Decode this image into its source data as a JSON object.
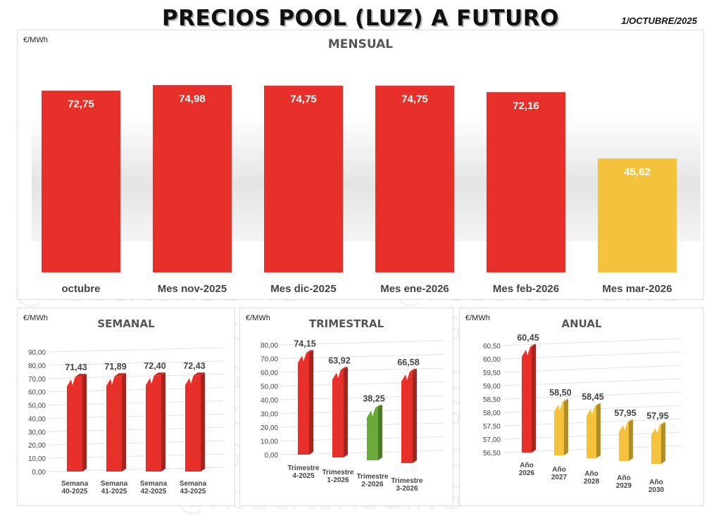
{
  "header": {
    "title": "PRECIOS POOL (LUZ) A FUTURO",
    "date": "1/OCTUBRE/2025",
    "watermark": "@RobertoRCGING"
  },
  "colors": {
    "red": "#e8302a",
    "yellow": "#f4c23c",
    "green": "#6aaa3a"
  },
  "chart_data": [
    {
      "type": "bar",
      "title": "MENSUAL",
      "ylabel": "€/MWh",
      "categories": [
        "octubre",
        "Mes nov-2025",
        "Mes dic-2025",
        "Mes ene-2026",
        "Mes feb-2026",
        "Mes mar-2026"
      ],
      "values": [
        72.75,
        74.98,
        74.75,
        74.75,
        72.16,
        45.62
      ],
      "labels": [
        "72,75",
        "74,98",
        "74,75",
        "74,75",
        "72,16",
        "45,62"
      ],
      "colors": [
        "red",
        "red",
        "red",
        "red",
        "red",
        "yellow"
      ],
      "ylim": [
        0,
        80
      ]
    },
    {
      "type": "bar",
      "title": "SEMANAL",
      "ylabel": "€/MWh",
      "categories": [
        [
          "Semana",
          "40-2025"
        ],
        [
          "Semana",
          "41-2025"
        ],
        [
          "Semana",
          "42-2025"
        ],
        [
          "Semana",
          "43-2025"
        ]
      ],
      "values": [
        71.43,
        71.89,
        72.4,
        72.43
      ],
      "labels": [
        "71,43",
        "71,89",
        "72,40",
        "72,43"
      ],
      "colors": [
        "red",
        "red",
        "red",
        "red"
      ],
      "yticks": [
        "0,00",
        "10,00",
        "20,00",
        "30,00",
        "40,00",
        "50,00",
        "60,00",
        "70,00",
        "80,00",
        "90,00"
      ],
      "ylim": [
        0,
        90
      ],
      "grid": true
    },
    {
      "type": "bar",
      "title": "TRIMESTRAL",
      "ylabel": "€/MWh",
      "categories": [
        [
          "Trimestre",
          "4-2025"
        ],
        [
          "Trimestre",
          "1-2026"
        ],
        [
          "Trimestre",
          "2-2026"
        ],
        [
          "Trimestre",
          "3-2026"
        ]
      ],
      "values": [
        74.15,
        63.92,
        38.25,
        66.58
      ],
      "labels": [
        "74,15",
        "63,92",
        "38,25",
        "66,58"
      ],
      "colors": [
        "red",
        "red",
        "green",
        "red"
      ],
      "yticks": [
        "0,00",
        "10,00",
        "20,00",
        "30,00",
        "40,00",
        "50,00",
        "60,00",
        "70,00",
        "80,00"
      ],
      "ylim": [
        0,
        80
      ],
      "grid": true
    },
    {
      "type": "bar",
      "title": "ANUAL",
      "ylabel": "€/MWh",
      "categories": [
        [
          "Año",
          "2026"
        ],
        [
          "Año",
          "2027"
        ],
        [
          "Año",
          "2028"
        ],
        [
          "Año",
          "2029"
        ],
        [
          "Año",
          "2030"
        ]
      ],
      "values": [
        60.45,
        58.5,
        58.45,
        57.95,
        57.95
      ],
      "labels": [
        "60,45",
        "58,50",
        "58,45",
        "57,95",
        "57,95"
      ],
      "colors": [
        "red",
        "yellow",
        "yellow",
        "yellow",
        "yellow"
      ],
      "yticks": [
        "56,50",
        "57,00",
        "57,50",
        "58,00",
        "58,50",
        "59,00",
        "59,50",
        "60,00",
        "60,50"
      ],
      "ylim": [
        56.5,
        60.5
      ],
      "grid": true
    }
  ]
}
